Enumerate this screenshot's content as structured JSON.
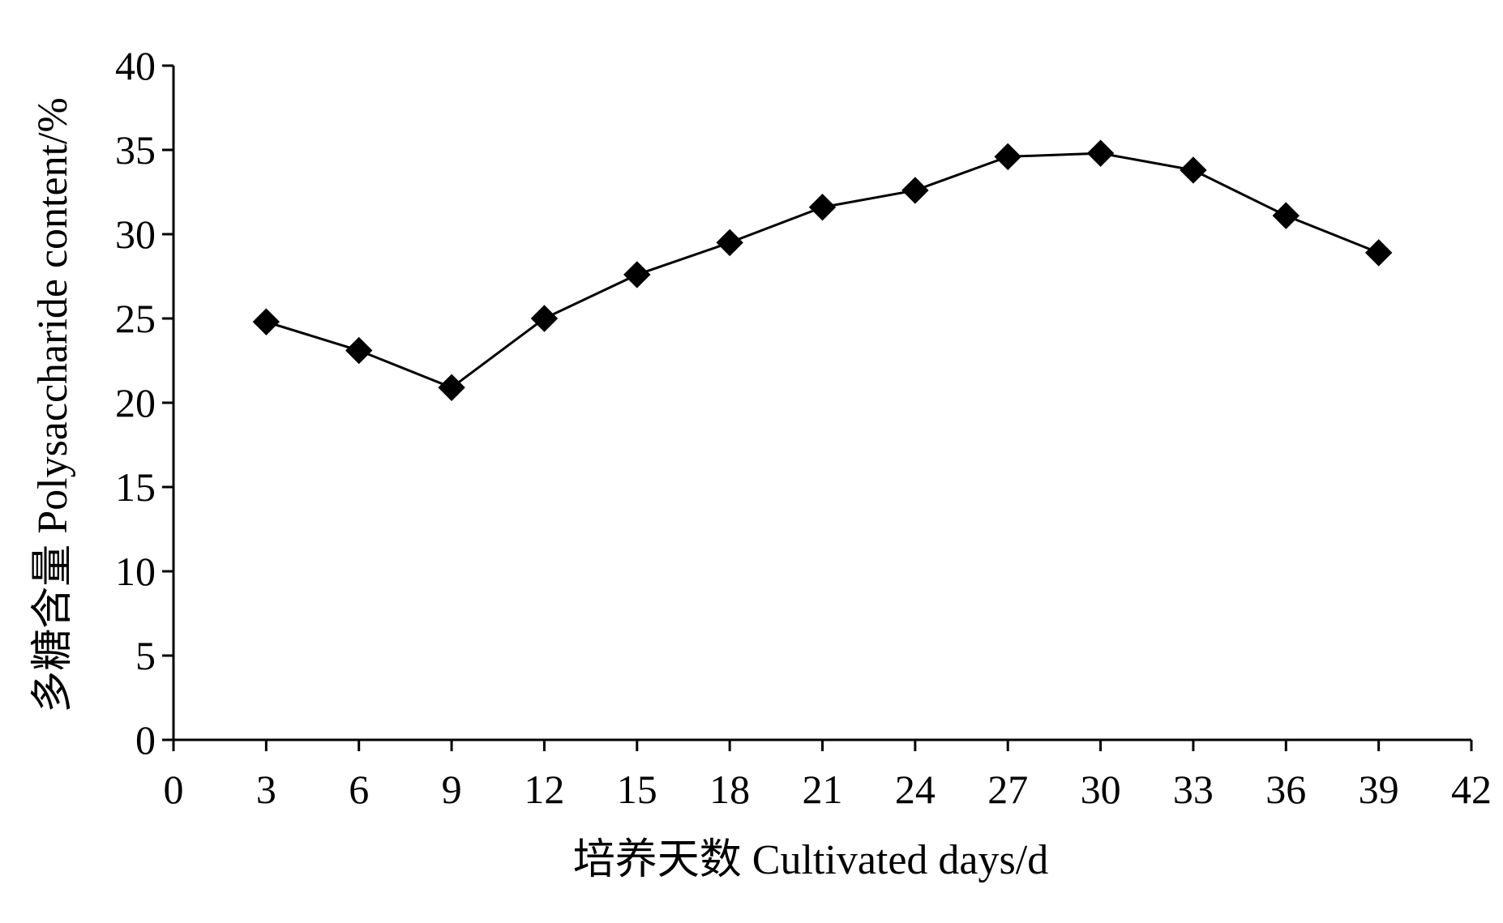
{
  "chart_data": {
    "type": "line",
    "title": "",
    "xlabel": "培养天数 Cultivated days/d",
    "ylabel": "多糖含量 Polysaccharide content/%",
    "xlim": [
      0,
      42
    ],
    "ylim": [
      0,
      40
    ],
    "xticks": [
      0,
      3,
      6,
      9,
      12,
      15,
      18,
      21,
      24,
      27,
      30,
      33,
      36,
      39,
      42
    ],
    "yticks": [
      0,
      5,
      10,
      15,
      20,
      25,
      30,
      35,
      40
    ],
    "grid": false,
    "legend": "none",
    "marker": "diamond",
    "colors": {
      "line": "#000000",
      "marker": "#000000",
      "axis": "#000000"
    },
    "series": [
      {
        "x": [
          3,
          6,
          9,
          12,
          15,
          18,
          21,
          24,
          27,
          30,
          33,
          36,
          39
        ],
        "values": [
          24.8,
          23.1,
          20.9,
          25.0,
          27.6,
          29.5,
          31.6,
          32.6,
          34.6,
          34.8,
          33.8,
          31.1,
          28.9
        ]
      }
    ]
  }
}
